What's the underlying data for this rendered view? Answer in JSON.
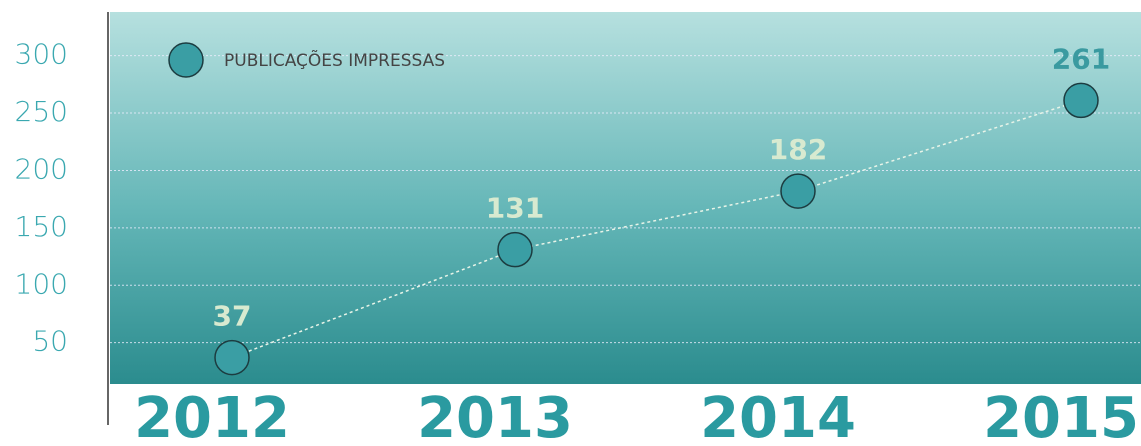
{
  "chart_data": {
    "type": "line",
    "categories": [
      "2012",
      "2013",
      "2014",
      "2015"
    ],
    "series": [
      {
        "name": "PUBLICAÇÕES IMPRESSAS",
        "color": "#3a9ea4",
        "values": [
          37,
          131,
          182,
          261
        ]
      }
    ],
    "ylim": [
      14,
      338
    ],
    "yticks": [
      50,
      100,
      150,
      200,
      250,
      300
    ],
    "grid": true,
    "legend": "top-left"
  }
}
